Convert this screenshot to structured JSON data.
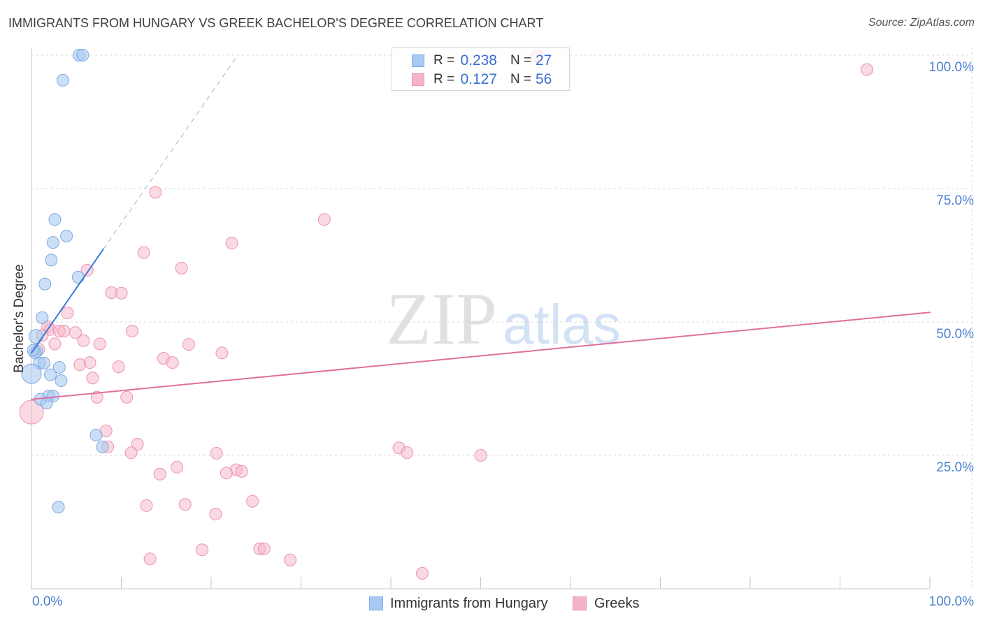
{
  "header": {
    "source": "Source: ZipAtlas.com"
  },
  "watermark": {
    "part1": "ZIP",
    "part2": "atlas"
  },
  "legend": {
    "r_prefix": "R =",
    "n_prefix": "N ="
  },
  "chart_data": {
    "type": "scatter",
    "title": "IMMIGRANTS FROM HUNGARY VS GREEK BACHELOR'S DEGREE CORRELATION CHART",
    "xlabel": "",
    "ylabel": "Bachelor's Degree",
    "xlim": [
      0,
      100
    ],
    "ylim": [
      0,
      100
    ],
    "grid": true,
    "x_ticks": [
      {
        "value": 0,
        "label": "0.0%"
      },
      {
        "value": 100,
        "label": "100.0%"
      }
    ],
    "x_tick_marks": [
      0,
      10,
      20,
      30,
      40,
      50,
      60,
      70,
      80,
      90,
      100
    ],
    "y_ticks": [
      {
        "value": 100,
        "label": "100.0%"
      },
      {
        "value": 75,
        "label": "75.0%"
      },
      {
        "value": 50,
        "label": "50.0%"
      },
      {
        "value": 25,
        "label": "25.0%"
      }
    ],
    "series": [
      {
        "name": "Immigrants from Hungary",
        "r": "0.238",
        "n": "27",
        "color": "#a9c9f2",
        "stroke": "#7ea9e3",
        "trend_color": "#3a7bd5",
        "trend": {
          "intercept": 44.2,
          "slope": 2.43,
          "solid_x": [
            0,
            8.0
          ],
          "dashed_x": [
            8.0,
            23.0
          ]
        },
        "points": [
          [
            5.3,
            100
          ],
          [
            5.7,
            100
          ],
          [
            3.5,
            95.3
          ],
          [
            2.6,
            69.2
          ],
          [
            3.9,
            66.1
          ],
          [
            2.4,
            64.9
          ],
          [
            2.2,
            61.6
          ],
          [
            5.2,
            58.4
          ],
          [
            1.5,
            57.1
          ],
          [
            1.2,
            50.8
          ],
          [
            0.5,
            47.3
          ],
          [
            0.6,
            44.5
          ],
          [
            0.4,
            44.2
          ],
          [
            0.2,
            44.7
          ],
          [
            0.9,
            42.3
          ],
          [
            1.4,
            42.3
          ],
          [
            3.1,
            41.5
          ],
          [
            0.0,
            40.3
          ],
          [
            2.1,
            40.1
          ],
          [
            3.3,
            39.0
          ],
          [
            1.9,
            36.1
          ],
          [
            2.4,
            36.1
          ],
          [
            1.0,
            35.5
          ],
          [
            1.7,
            34.8
          ],
          [
            7.2,
            28.8
          ],
          [
            7.9,
            26.6
          ],
          [
            3.0,
            15.3
          ]
        ]
      },
      {
        "name": "Greeks",
        "r": "0.127",
        "n": "56",
        "color": "#f5b3c8",
        "stroke": "#ec93b1",
        "trend_color": "#e0709a",
        "trend": {
          "intercept": 35.5,
          "slope": 0.163,
          "solid_x": [
            0,
            100
          ]
        },
        "points": [
          [
            56.3,
            99.8
          ],
          [
            93.0,
            97.3
          ],
          [
            13.8,
            74.3
          ],
          [
            32.6,
            69.2
          ],
          [
            22.3,
            64.8
          ],
          [
            12.5,
            63.0
          ],
          [
            16.7,
            60.1
          ],
          [
            6.2,
            59.7
          ],
          [
            8.9,
            55.5
          ],
          [
            10.0,
            55.4
          ],
          [
            4.0,
            51.7
          ],
          [
            1.8,
            49.1
          ],
          [
            2.1,
            48.6
          ],
          [
            3.1,
            48.3
          ],
          [
            3.6,
            48.3
          ],
          [
            4.9,
            48.0
          ],
          [
            11.2,
            48.3
          ],
          [
            1.2,
            47.5
          ],
          [
            5.8,
            46.5
          ],
          [
            2.6,
            45.9
          ],
          [
            7.6,
            45.9
          ],
          [
            17.5,
            45.8
          ],
          [
            0.8,
            44.9
          ],
          [
            21.2,
            44.2
          ],
          [
            14.7,
            43.2
          ],
          [
            15.7,
            42.4
          ],
          [
            6.5,
            42.4
          ],
          [
            5.4,
            42.0
          ],
          [
            9.7,
            41.6
          ],
          [
            6.8,
            39.5
          ],
          [
            7.3,
            35.9
          ],
          [
            10.6,
            35.9
          ],
          [
            0.0,
            33.1
          ],
          [
            8.3,
            29.6
          ],
          [
            11.8,
            27.1
          ],
          [
            8.5,
            26.6
          ],
          [
            11.1,
            25.5
          ],
          [
            40.9,
            26.4
          ],
          [
            41.8,
            25.5
          ],
          [
            50.0,
            25.0
          ],
          [
            20.6,
            25.4
          ],
          [
            16.2,
            22.8
          ],
          [
            22.8,
            22.3
          ],
          [
            23.4,
            22.0
          ],
          [
            21.7,
            21.7
          ],
          [
            14.3,
            21.5
          ],
          [
            24.6,
            16.4
          ],
          [
            12.8,
            15.6
          ],
          [
            17.1,
            15.8
          ],
          [
            20.5,
            14.0
          ],
          [
            19.0,
            7.3
          ],
          [
            25.4,
            7.5
          ],
          [
            25.9,
            7.5
          ],
          [
            13.2,
            5.6
          ],
          [
            28.8,
            5.4
          ],
          [
            43.5,
            2.9
          ]
        ]
      }
    ]
  }
}
